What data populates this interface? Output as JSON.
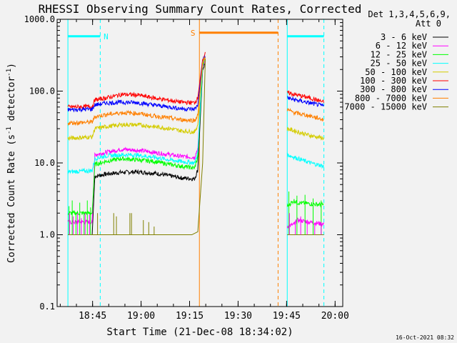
{
  "chart_data": {
    "type": "line",
    "title": "RHESSI Observing Summary Count Rates, Corrected",
    "xlabel": "Start Time (21-Dec-08 18:34:02)",
    "ylabel": "Corrected Count Rate (s⁻¹ detector⁻¹)",
    "ylabel_parts": {
      "base": "Corrected Count Rate (s",
      "sup1": "-1",
      "mid": " detector",
      "sup2": "-1",
      "end": ")"
    },
    "yscale": "log",
    "xlim": [
      0,
      5300
    ],
    "ylim": [
      0.1,
      1000
    ],
    "grid": false,
    "legend_position": "top-right",
    "legend_title": [
      "Det 1,3,4,5,6,9,",
      "Att 0"
    ],
    "x_ticks": [
      {
        "x": 658,
        "label": "18:45"
      },
      {
        "x": 1558,
        "label": "19:00"
      },
      {
        "x": 2458,
        "label": "19:15"
      },
      {
        "x": 3358,
        "label": "19:30"
      },
      {
        "x": 4258,
        "label": "19:45"
      },
      {
        "x": 5158,
        "label": "20:00"
      }
    ],
    "y_ticks": [
      {
        "v": 0.1,
        "label": "0.1"
      },
      {
        "v": 1,
        "label": "1.0"
      },
      {
        "v": 10,
        "label": "10.0"
      },
      {
        "v": 100,
        "label": "100.0"
      },
      {
        "v": 1000,
        "label": "1000.0"
      }
    ],
    "series": [
      {
        "name": "3 - 6 keV",
        "color": "#000000",
        "values": [
          [
            200,
            1.0
          ],
          [
            650,
            1.0
          ],
          [
            700,
            6.5
          ],
          [
            900,
            7.0
          ],
          [
            1200,
            7.4
          ],
          [
            1500,
            7.5
          ],
          [
            1800,
            7.2
          ],
          [
            2100,
            6.6
          ],
          [
            2300,
            6.2
          ],
          [
            2550,
            6.0
          ],
          [
            2610,
            8
          ],
          [
            2700,
            200
          ],
          [
            2750,
            250
          ],
          [
            4270,
            1.0
          ],
          [
            4400,
            1.0
          ],
          [
            4450,
            1.0
          ],
          [
            4950,
            1.0
          ]
        ]
      },
      {
        "name": "6 - 12 keV",
        "color": "#ff00ff",
        "values": [
          [
            200,
            1.5
          ],
          [
            650,
            1.5
          ],
          [
            700,
            13
          ],
          [
            900,
            14
          ],
          [
            1200,
            15.5
          ],
          [
            1500,
            15
          ],
          [
            1800,
            14
          ],
          [
            2100,
            13
          ],
          [
            2300,
            12.3
          ],
          [
            2550,
            12
          ],
          [
            2610,
            16
          ],
          [
            2700,
            220
          ],
          [
            2750,
            270
          ],
          [
            4270,
            1.3
          ],
          [
            4400,
            1.4
          ],
          [
            4450,
            1.6
          ],
          [
            4950,
            1.4
          ]
        ]
      },
      {
        "name": "12 - 25 keV",
        "color": "#00ff00",
        "values": [
          [
            200,
            2.0
          ],
          [
            650,
            2.0
          ],
          [
            700,
            9.5
          ],
          [
            900,
            10.5
          ],
          [
            1200,
            11.5
          ],
          [
            1500,
            11
          ],
          [
            1800,
            10.5
          ],
          [
            2100,
            9.5
          ],
          [
            2300,
            9
          ],
          [
            2550,
            8.5
          ],
          [
            2610,
            12
          ],
          [
            2700,
            230
          ],
          [
            2750,
            280
          ],
          [
            4270,
            2.5
          ],
          [
            4400,
            3.0
          ],
          [
            4450,
            2.8
          ],
          [
            4950,
            2.6
          ]
        ]
      },
      {
        "name": "25 - 50 keV",
        "color": "#00ffff",
        "values": [
          [
            200,
            7.5
          ],
          [
            650,
            7.8
          ],
          [
            700,
            11.5
          ],
          [
            900,
            12.5
          ],
          [
            1200,
            13
          ],
          [
            1500,
            12.8
          ],
          [
            1800,
            12
          ],
          [
            2100,
            11
          ],
          [
            2300,
            10.5
          ],
          [
            2550,
            10
          ],
          [
            2610,
            14
          ],
          [
            2700,
            240
          ],
          [
            2750,
            290
          ],
          [
            4270,
            13
          ],
          [
            4400,
            12
          ],
          [
            4700,
            10
          ],
          [
            4950,
            9
          ]
        ]
      },
      {
        "name": "50 - 100 keV",
        "color": "#d4cc00",
        "values": [
          [
            200,
            22
          ],
          [
            650,
            23
          ],
          [
            700,
            30
          ],
          [
            900,
            32
          ],
          [
            1200,
            34
          ],
          [
            1500,
            34
          ],
          [
            1800,
            32
          ],
          [
            2100,
            30
          ],
          [
            2300,
            28
          ],
          [
            2550,
            27
          ],
          [
            2610,
            34
          ],
          [
            2700,
            250
          ],
          [
            2750,
            300
          ],
          [
            4270,
            30
          ],
          [
            4400,
            28
          ],
          [
            4700,
            24
          ],
          [
            4950,
            22
          ]
        ]
      },
      {
        "name": "100 - 300 keV",
        "color": "#ff0000",
        "values": [
          [
            200,
            60
          ],
          [
            650,
            61
          ],
          [
            700,
            75
          ],
          [
            900,
            80
          ],
          [
            1200,
            90
          ],
          [
            1500,
            88
          ],
          [
            1800,
            80
          ],
          [
            2100,
            74
          ],
          [
            2300,
            70
          ],
          [
            2550,
            69
          ],
          [
            2610,
            80
          ],
          [
            2700,
            280
          ],
          [
            2750,
            330
          ],
          [
            4270,
            95
          ],
          [
            4400,
            90
          ],
          [
            4700,
            80
          ],
          [
            4950,
            70
          ]
        ]
      },
      {
        "name": "300 - 800 keV",
        "color": "#0000ff",
        "values": [
          [
            200,
            55
          ],
          [
            650,
            56
          ],
          [
            700,
            64
          ],
          [
            900,
            68
          ],
          [
            1200,
            70
          ],
          [
            1500,
            69
          ],
          [
            1800,
            64
          ],
          [
            2100,
            60
          ],
          [
            2300,
            57
          ],
          [
            2550,
            56
          ],
          [
            2610,
            64
          ],
          [
            2700,
            265
          ],
          [
            2750,
            310
          ],
          [
            4270,
            80
          ],
          [
            4400,
            76
          ],
          [
            4700,
            68
          ],
          [
            4950,
            62
          ]
        ]
      },
      {
        "name": "800 - 7000 keV",
        "color": "#ff8000",
        "values": [
          [
            200,
            36
          ],
          [
            650,
            37
          ],
          [
            700,
            44
          ],
          [
            900,
            47
          ],
          [
            1200,
            50
          ],
          [
            1500,
            49
          ],
          [
            1800,
            45
          ],
          [
            2100,
            42
          ],
          [
            2300,
            40
          ],
          [
            2550,
            39
          ],
          [
            2610,
            46
          ],
          [
            2700,
            255
          ],
          [
            2750,
            300
          ],
          [
            4270,
            55
          ],
          [
            4400,
            50
          ],
          [
            4700,
            45
          ],
          [
            4950,
            40
          ]
        ]
      },
      {
        "name": "7000 - 15000 keV",
        "color": "#808000",
        "values": [
          [
            200,
            1.0
          ],
          [
            650,
            1.0
          ],
          [
            1200,
            1.0
          ],
          [
            2000,
            1.0
          ],
          [
            2500,
            1.0
          ],
          [
            2610,
            1.1
          ],
          [
            2700,
            10
          ],
          [
            2750,
            280
          ],
          [
            4270,
            1.0
          ],
          [
            4950,
            1.0
          ]
        ]
      }
    ],
    "spikes": [
      {
        "series": 8,
        "x": [
          750,
          1050,
          1100,
          1350,
          1380,
          1600,
          1700,
          1800
        ],
        "y": [
          2.0,
          2.0,
          1.8,
          2.0,
          2.0,
          1.6,
          1.5,
          1.3
        ]
      },
      {
        "series": 2,
        "x": [
          220,
          280,
          350,
          420,
          500,
          560,
          620
        ],
        "y": [
          2.5,
          3.0,
          2.0,
          2.8,
          2.0,
          3.0,
          2.4
        ]
      },
      {
        "series": 1,
        "x": [
          230,
          300,
          380,
          450,
          520,
          600
        ],
        "y": [
          2.0,
          1.8,
          2.0,
          1.7,
          2.0,
          1.9
        ]
      },
      {
        "series": 2,
        "x": [
          4300,
          4450,
          4600,
          4750,
          4900
        ],
        "y": [
          4.0,
          3.5,
          3.6,
          3.2,
          3.0
        ]
      },
      {
        "series": 1,
        "x": [
          4310,
          4420,
          4520,
          4640,
          4780,
          4900
        ],
        "y": [
          2.0,
          1.5,
          1.8,
          1.6,
          1.4,
          1.5
        ]
      }
    ],
    "flags": [
      {
        "label": "N",
        "color": "#00ffff",
        "bars": [
          [
            200,
            800
          ],
          [
            4270,
            4950
          ]
        ],
        "y": 580,
        "vlines": [
          200,
          800,
          4270,
          4950
        ],
        "vline_styles": [
          "solid",
          "dashed",
          "solid",
          "dashed"
        ]
      },
      {
        "label": "S",
        "color": "#ff8000",
        "bars": [
          [
            2640,
            4100
          ]
        ],
        "y": 650,
        "vlines": [
          2640,
          4100
        ],
        "vline_styles": [
          "solid",
          "dashed"
        ]
      }
    ],
    "timestamp": "16-Oct-2021 08:32"
  }
}
